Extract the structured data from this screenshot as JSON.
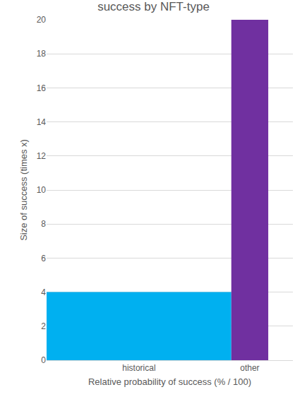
{
  "chart_data": {
    "type": "bar",
    "title": "success by NFT-type",
    "x_label": "Relative probability of success (% / 100)",
    "y_label": "Size of success (times x)",
    "categories": [
      "historical",
      "other"
    ],
    "values": [
      4,
      20
    ],
    "widths": [
      0.75,
      0.15
    ],
    "colors": [
      "#00b0f0",
      "#7030a0"
    ],
    "xlim": [
      0,
      1
    ],
    "ylim": [
      0,
      20
    ],
    "yticks": [
      0,
      2,
      4,
      6,
      8,
      10,
      12,
      14,
      16,
      18,
      20
    ],
    "grid": true
  }
}
